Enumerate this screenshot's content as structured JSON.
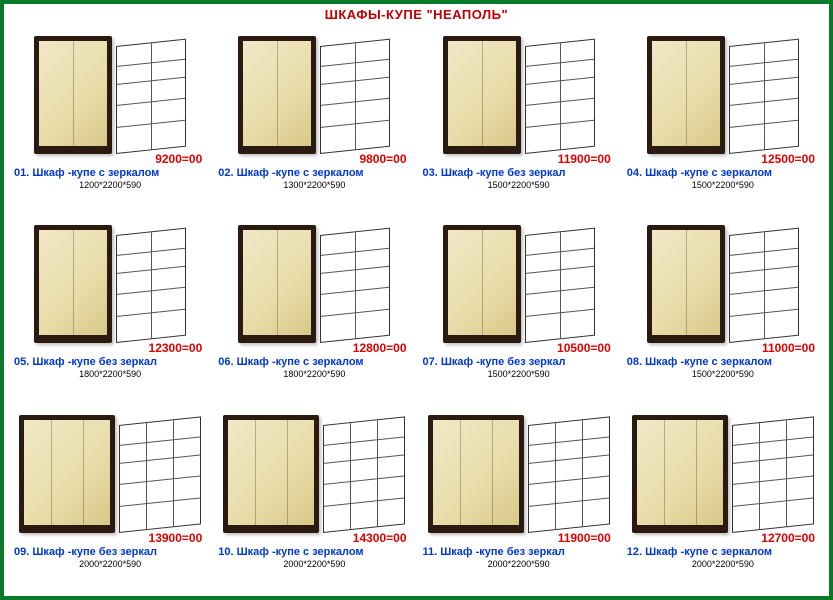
{
  "title": "ШКАФЫ-КУПЕ \"НЕАПОЛЬ\"",
  "title_color": "#c00000",
  "price_color": "#e00000",
  "name_color": "#0038d0",
  "border_color": "#0a7a2a",
  "items": [
    {
      "num": "01.",
      "name": "Шкаф -купе с зеркалом",
      "price": "9200=00",
      "dims": "1200*2200*590",
      "doors": 2
    },
    {
      "num": "02.",
      "name": "Шкаф -купе с зеркалом",
      "price": "9800=00",
      "dims": "1300*2200*590",
      "doors": 2
    },
    {
      "num": "03.",
      "name": "Шкаф -купе без зеркал",
      "price": "11900=00",
      "dims": "1500*2200*590",
      "doors": 2
    },
    {
      "num": "04.",
      "name": "Шкаф -купе с зеркалом",
      "price": "12500=00",
      "dims": "1500*2200*590",
      "doors": 2
    },
    {
      "num": "05.",
      "name": "Шкаф -купе без зеркал",
      "price": "12300=00",
      "dims": "1800*2200*590",
      "doors": 2
    },
    {
      "num": "06.",
      "name": "Шкаф -купе с зеркалом",
      "price": "12800=00",
      "dims": "1800*2200*590",
      "doors": 2
    },
    {
      "num": "07.",
      "name": "Шкаф -купе без зеркал",
      "price": "10500=00",
      "dims": "1500*2200*590",
      "doors": 2
    },
    {
      "num": "08.",
      "name": "Шкаф -купе с зеркалом",
      "price": "11000=00",
      "dims": "1500*2200*590",
      "doors": 2
    },
    {
      "num": "09.",
      "name": "Шкаф -купе без зеркал",
      "price": "13900=00",
      "dims": "2000*2200*590",
      "doors": 3
    },
    {
      "num": "10.",
      "name": "Шкаф -купе с зеркалом",
      "price": "14300=00",
      "dims": "2000*2200*590",
      "doors": 3
    },
    {
      "num": "11.",
      "name": "Шкаф -купе без зеркал",
      "price": "11900=00",
      "dims": "2000*2200*590",
      "doors": 3
    },
    {
      "num": "12.",
      "name": "Шкаф -купе с зеркалом",
      "price": "12700=00",
      "dims": "2000*2200*590",
      "doors": 3
    }
  ]
}
